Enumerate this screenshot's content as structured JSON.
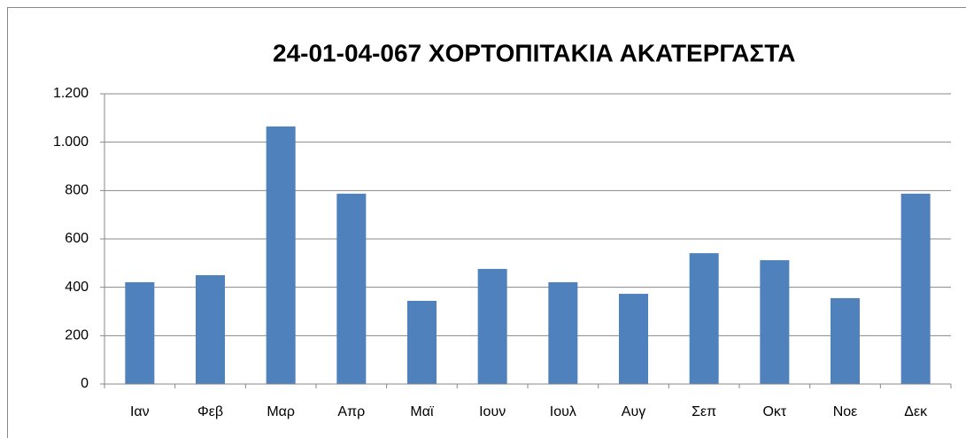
{
  "chart_data": {
    "type": "bar",
    "title": "24-01-04-067 ΧΟΡΤΟΠΙΤΑΚΙΑ ΑΚΑΤΕΡΓΑΣΤΑ",
    "categories": [
      "Ιαν",
      "Φεβ",
      "Μαρ",
      "Απρ",
      "Μαϊ",
      "Ιουν",
      "Ιουλ",
      "Αυγ",
      "Σεπ",
      "Οκτ",
      "Νοε",
      "Δεκ"
    ],
    "values": [
      421,
      450,
      1065,
      787,
      344,
      476,
      421,
      373,
      541,
      512,
      355,
      787
    ],
    "color": "#4f81bd",
    "ylim": [
      0,
      1200
    ],
    "yticks": [
      0,
      200,
      400,
      600,
      800,
      {
        "value": 1000,
        "label": "1.000"
      },
      {
        "value": 1200,
        "label": "1.200"
      }
    ],
    "grid": true
  }
}
